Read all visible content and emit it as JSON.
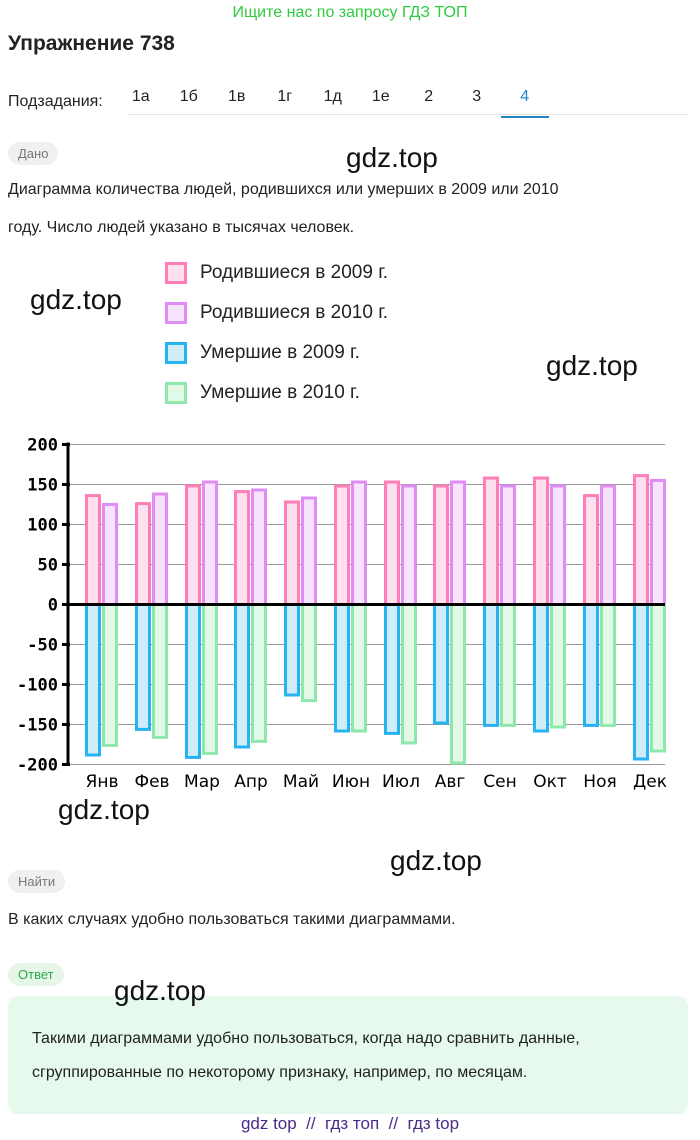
{
  "promo": "Ищите нас по запросу ГДЗ ТОП",
  "title": "Упражнение 738",
  "subtasks": {
    "label": "Подзадания:",
    "items": [
      "1а",
      "1б",
      "1в",
      "1г",
      "1д",
      "1е",
      "2",
      "3",
      "4"
    ],
    "active": "4"
  },
  "given": {
    "badge": "Дано",
    "text1": "Диаграмма количества людей, родившихся или умерших в 2009 или 2010",
    "text2": "году. Число людей указано в тысячах человек."
  },
  "watermarks": [
    "gdz.top",
    "gdz.top",
    "gdz.top",
    "gdz.top",
    "gdz.top",
    "gdz.top"
  ],
  "find": {
    "badge": "Найти",
    "text": "В каких случаях удобно пользоваться такими диаграммами."
  },
  "answer": {
    "badge": "Ответ",
    "line1": "Такими диаграммами удобно пользоваться, когда надо сравнить данные,",
    "line2": "сгруппированные по некоторому признаку, например, по месяцам."
  },
  "footer": "gdz top  //  гдз топ  //  гдз top",
  "chart_data": {
    "type": "bar",
    "categories": [
      "Янв",
      "Фев",
      "Мар",
      "Апр",
      "Май",
      "Июн",
      "Июл",
      "Авг",
      "Сен",
      "Окт",
      "Ноя",
      "Дек"
    ],
    "series": [
      {
        "name": "Родившиеся в 2009 г.",
        "color": "#ff7eb9",
        "fill": "#ffe0ef",
        "values": [
          138,
          128,
          150,
          143,
          130,
          150,
          155,
          150,
          160,
          160,
          138,
          163
        ]
      },
      {
        "name": "Родившиеся в 2010 г.",
        "color": "#e08cf5",
        "fill": "#f7e3fd",
        "values": [
          127,
          140,
          155,
          145,
          135,
          155,
          150,
          155,
          150,
          150,
          150,
          157
        ]
      },
      {
        "name": "Умершие в 2009 г.",
        "color": "#26b4f0",
        "fill": "#d0ecfb",
        "values": [
          -190,
          -158,
          -193,
          -180,
          -115,
          -160,
          -163,
          -150,
          -153,
          -160,
          -153,
          -195
        ]
      },
      {
        "name": "Умершие в 2010 г.",
        "color": "#8ee8ac",
        "fill": "#e2f9e8",
        "values": [
          -178,
          -168,
          -188,
          -173,
          -122,
          -160,
          -175,
          -200,
          -153,
          -155,
          -153,
          -185
        ]
      }
    ],
    "yticks": [
      "200",
      "150",
      "100",
      "50",
      "0",
      "-50",
      "-100",
      "-150",
      "-200"
    ],
    "ylim": [
      -200,
      200
    ],
    "ylabel": "",
    "xlabel": "",
    "unit": "тыс. человек"
  }
}
